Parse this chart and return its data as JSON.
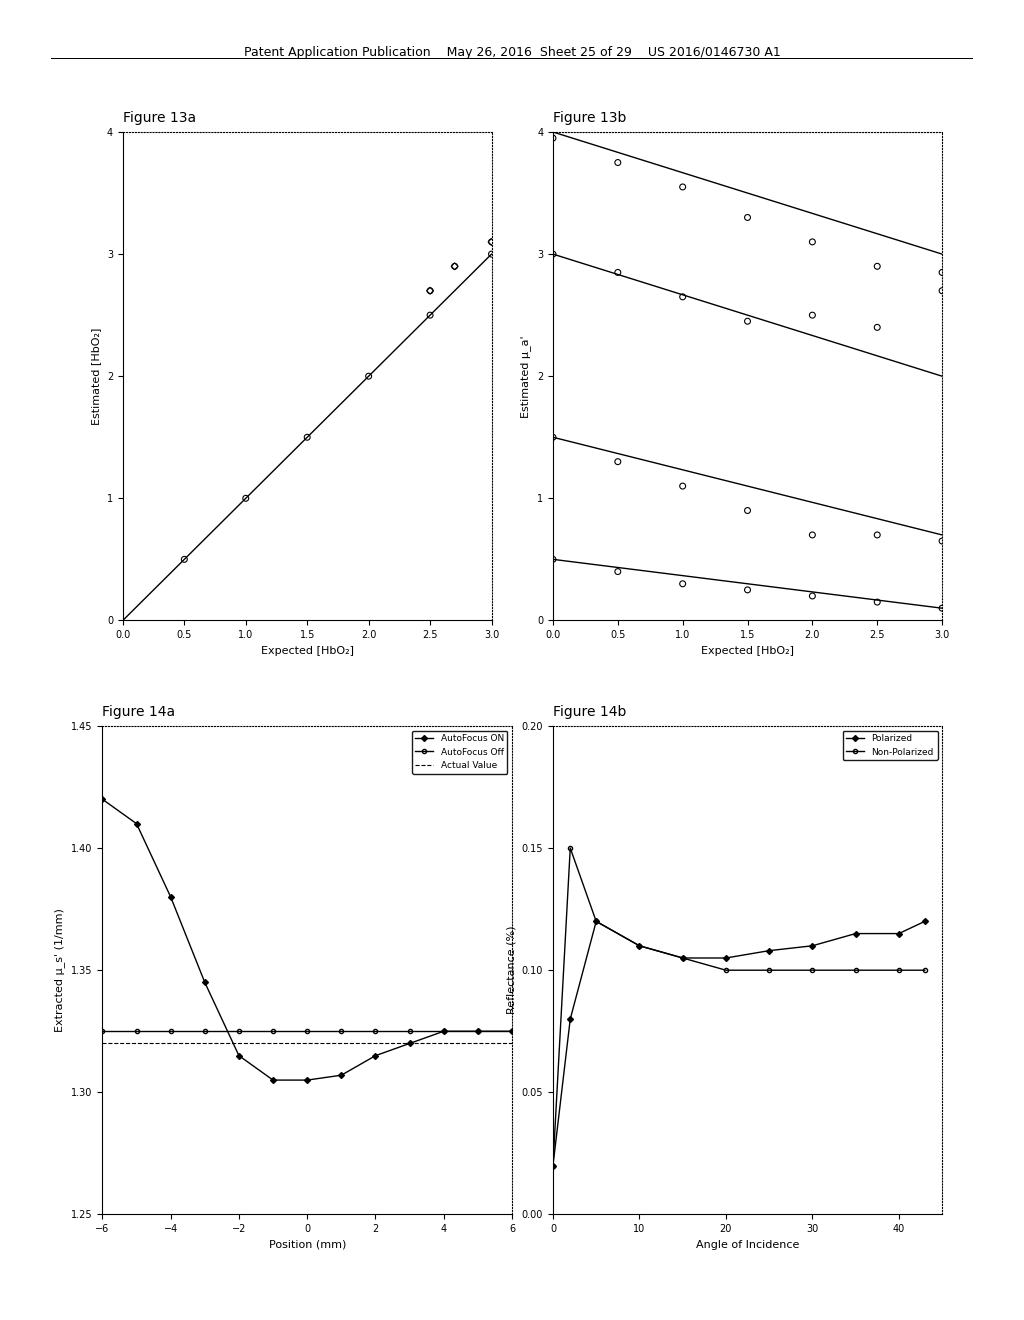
{
  "bg_color": "#ffffff",
  "header_text": "Patent Application Publication    May 26, 2016  Sheet 25 of 29    US 2016/0146730 A1",
  "fig13a": {
    "title": "Figure 13a",
    "xlabel": "Expected [HbO₂]",
    "ylabel": "Estimated [HbO₂]",
    "xlim": [
      0,
      3
    ],
    "ylim": [
      0,
      4
    ],
    "xticks": [
      0,
      0.5,
      1,
      1.5,
      2,
      2.5,
      3
    ],
    "yticks": [
      0,
      1,
      2,
      3,
      4
    ],
    "line_x": [
      0,
      3
    ],
    "line_y": [
      0,
      3
    ],
    "scatter_x": [
      0.5,
      1.0,
      1.5,
      2.0,
      2.5,
      3.0
    ],
    "scatter_y": [
      0.5,
      1.0,
      1.5,
      2.0,
      2.5,
      3.0
    ],
    "scatter2_x": [
      2.5,
      3.0
    ],
    "scatter2_y": [
      2.7,
      3.1
    ]
  },
  "fig13b": {
    "title": "Figure 13b",
    "xlabel": "Expected [HbO₂]",
    "ylabel": "Estimated μ_a'",
    "xlim": [
      0,
      3
    ],
    "ylim": [
      0,
      4
    ],
    "xticks": [
      0,
      0.5,
      1,
      1.5,
      2,
      2.5,
      3
    ],
    "yticks": [
      0,
      1,
      2,
      3,
      4
    ],
    "lines": [
      {
        "x": [
          0,
          3
        ],
        "y": [
          4.0,
          3.0
        ],
        "scatter_x": [
          0,
          0.5,
          1.0,
          1.5,
          2.0,
          2.5,
          3.0
        ],
        "scatter_y": [
          3.95,
          3.75,
          3.55,
          3.3,
          3.1,
          2.9,
          2.85
        ]
      },
      {
        "x": [
          0,
          3
        ],
        "y": [
          3.0,
          2.0
        ],
        "scatter_x": [
          0,
          0.5,
          1.0,
          1.5,
          2.0,
          2.5,
          3.0
        ],
        "scatter_y": [
          3.0,
          2.85,
          2.65,
          2.45,
          2.5,
          2.4,
          2.7
        ]
      },
      {
        "x": [
          0,
          3
        ],
        "y": [
          1.5,
          0.7
        ],
        "scatter_x": [
          0,
          0.5,
          1.0,
          1.5,
          2.0,
          2.5,
          3.0
        ],
        "scatter_y": [
          1.5,
          1.3,
          1.1,
          0.9,
          0.7,
          0.7,
          0.65
        ]
      },
      {
        "x": [
          0,
          3
        ],
        "y": [
          0.5,
          0.1
        ],
        "scatter_x": [
          0,
          0.5,
          1.0,
          1.5,
          2.0,
          2.5,
          3.0
        ],
        "scatter_y": [
          0.5,
          0.4,
          0.3,
          0.25,
          0.2,
          0.15,
          0.1
        ]
      }
    ],
    "hline_y": 4.0
  },
  "fig14a": {
    "title": "Figure 14a",
    "xlabel": "Position (mm)",
    "ylabel": "Extracted μ_s' (1/mm)",
    "xlim": [
      -6,
      6
    ],
    "ylim": [
      1.25,
      1.45
    ],
    "xticks": [
      -6,
      -4,
      -2,
      0,
      2,
      4,
      6
    ],
    "yticks": [
      1.25,
      1.3,
      1.35,
      1.4,
      1.45
    ],
    "autofocus_on_x": [
      -6,
      -5,
      -4,
      -3,
      -2,
      -1,
      0,
      1,
      2,
      3,
      4,
      5,
      6
    ],
    "autofocus_on_y": [
      1.42,
      1.41,
      1.38,
      1.345,
      1.315,
      1.305,
      1.305,
      1.307,
      1.315,
      1.32,
      1.325,
      1.325,
      1.325
    ],
    "autofocus_off_x": [
      -6,
      -5,
      -4,
      -3,
      -2,
      -1,
      0,
      1,
      2,
      3,
      4,
      5,
      6
    ],
    "autofocus_off_y": [
      1.325,
      1.325,
      1.325,
      1.325,
      1.325,
      1.325,
      1.325,
      1.325,
      1.325,
      1.325,
      1.325,
      1.325,
      1.325
    ],
    "actual_value": 1.32,
    "legend": [
      "AutoFocus ON",
      "AutoFocus Off",
      "Actual Value"
    ]
  },
  "fig14b": {
    "title": "Figure 14b",
    "xlabel": "Angle of Incidence",
    "ylabel": "Reflectance (%)",
    "xlim": [
      0,
      45
    ],
    "ylim": [
      0,
      0.2
    ],
    "xticks": [
      0,
      10,
      20,
      30,
      40
    ],
    "yticks": [
      0,
      0.05,
      0.1,
      0.15,
      0.2
    ],
    "polarized_x": [
      0,
      2,
      5,
      10,
      15,
      20,
      25,
      30,
      35,
      40,
      43
    ],
    "polarized_y": [
      0.02,
      0.08,
      0.12,
      0.11,
      0.105,
      0.105,
      0.108,
      0.11,
      0.115,
      0.115,
      0.12
    ],
    "nonpolarized_x": [
      0,
      2,
      5,
      10,
      15,
      20,
      25,
      30,
      35,
      40,
      43
    ],
    "nonpolarized_y": [
      0.02,
      0.15,
      0.12,
      0.11,
      0.105,
      0.1,
      0.1,
      0.1,
      0.1,
      0.1,
      0.1
    ],
    "legend": [
      "Polarized",
      "Non-Polarized"
    ]
  }
}
